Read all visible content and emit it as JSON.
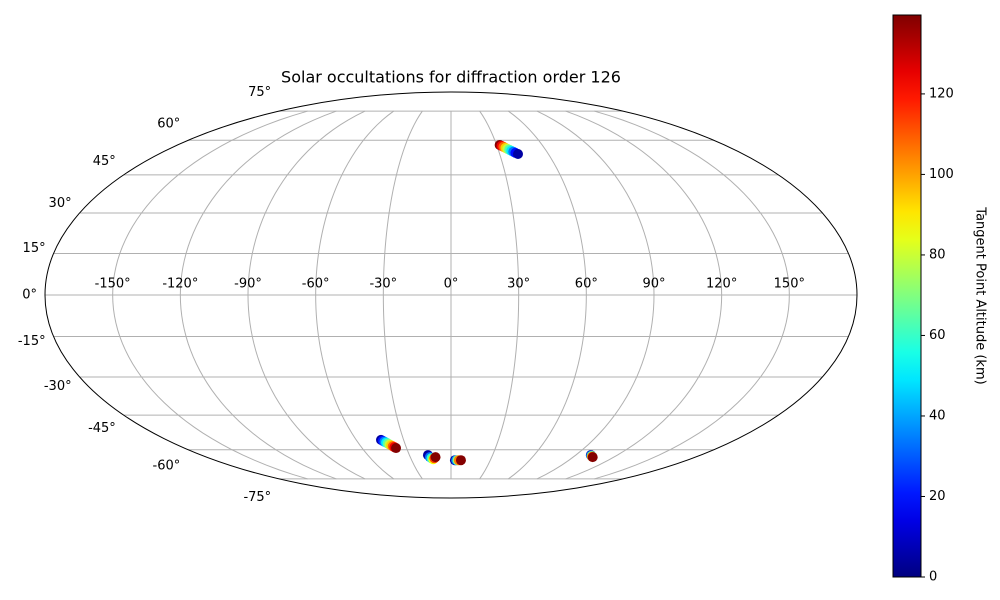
{
  "chart_data": {
    "type": "scatter",
    "projection": "mollweide",
    "title": "Solar occultations for diffraction order 126",
    "xlim": [
      -180,
      180
    ],
    "ylim": [
      -90,
      90
    ],
    "xticks": [
      {
        "value": -150,
        "label": "-150°"
      },
      {
        "value": -120,
        "label": "-120°"
      },
      {
        "value": -90,
        "label": "-90°"
      },
      {
        "value": -60,
        "label": "-60°"
      },
      {
        "value": -30,
        "label": "-30°"
      },
      {
        "value": 0,
        "label": "0°"
      },
      {
        "value": 30,
        "label": "30°"
      },
      {
        "value": 60,
        "label": "60°"
      },
      {
        "value": 90,
        "label": "90°"
      },
      {
        "value": 120,
        "label": "120°"
      },
      {
        "value": 150,
        "label": "150°"
      }
    ],
    "yticks": [
      {
        "value": -75,
        "label": "-75°"
      },
      {
        "value": -60,
        "label": "-60°"
      },
      {
        "value": -45,
        "label": "-45°"
      },
      {
        "value": -30,
        "label": "-30°"
      },
      {
        "value": -15,
        "label": "-15°"
      },
      {
        "value": 0,
        "label": "0°"
      },
      {
        "value": 15,
        "label": "15°"
      },
      {
        "value": 30,
        "label": "30°"
      },
      {
        "value": 45,
        "label": "45°"
      },
      {
        "value": 60,
        "label": "60°"
      },
      {
        "value": 75,
        "label": "75°"
      }
    ],
    "grid": true,
    "colormap": "jet",
    "clim": [
      0,
      139.6
    ],
    "cticks": [
      0,
      20,
      40,
      60,
      80,
      100,
      120
    ],
    "colorbar_label": "Tangent Point Altitude (km)",
    "x": [
      32,
      33,
      34,
      35,
      36,
      37,
      38,
      39,
      40,
      41.3,
      -44.3,
      -43.5,
      -42.7,
      -41.9,
      -41.1,
      -40.3,
      -39.5,
      -38.7,
      -37.9,
      -37.1,
      -16.6,
      -15.6,
      -14.6,
      -13.4,
      -12.4,
      -11.4,
      3,
      4,
      5,
      6,
      7.6,
      100.8,
      101.7,
      102.6,
      103.5,
      104.4
    ],
    "y": [
      57.8,
      57.4,
      57,
      56.5,
      56.1,
      55.7,
      55.2,
      54.8,
      54.3,
      53.8,
      -55.5,
      -55.9,
      -56.3,
      -56.7,
      -57.1,
      -57.6,
      -58,
      -58.4,
      -58.8,
      -59.2,
      -62.5,
      -63.5,
      -64,
      -64.5,
      -64,
      -63.5,
      -65,
      -65,
      -65,
      -65,
      -65,
      -62.5,
      -62.8,
      -63,
      -63.3,
      -63.5
    ],
    "c": [
      139,
      124,
      109,
      94,
      79,
      64,
      49,
      34,
      19,
      5,
      5,
      20,
      35,
      50,
      65,
      79,
      94,
      109,
      124,
      139,
      5,
      32,
      59,
      86,
      113,
      139,
      5,
      38,
      72,
      105,
      139,
      5,
      38,
      72,
      105,
      139
    ]
  }
}
